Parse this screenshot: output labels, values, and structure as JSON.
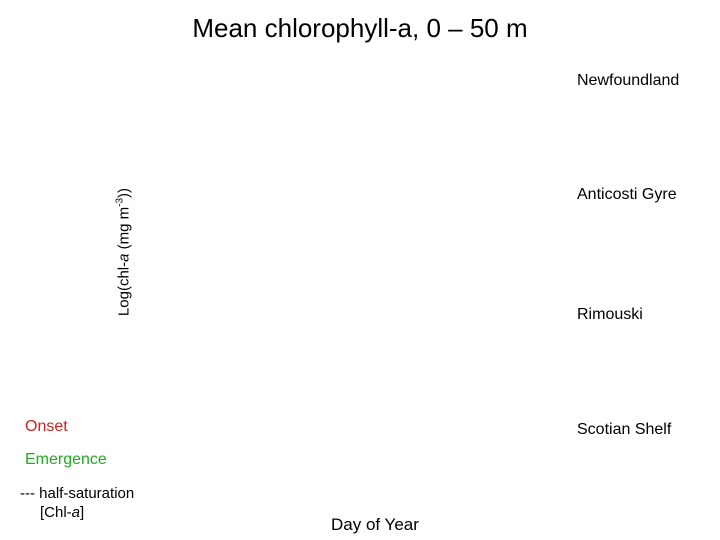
{
  "chart_data": {
    "type": "line",
    "title": "Mean chlorophyll-a, 0 – 50 m",
    "xlabel": "Day of Year",
    "ylabel": {
      "prefix": "Log(chl-",
      "italic": "a",
      "middle": " (mg m",
      "sup": "-3",
      "suffix": "))"
    },
    "panels": [
      "Newfoundland",
      "Anticosti Gyre",
      "Rimouski",
      "Scotian Shelf"
    ],
    "legend": {
      "onset": "Onset",
      "emergence": "Emergence",
      "half_saturation_line1": "--- half-saturation",
      "half_saturation_line2_prefix": "[Chl-",
      "half_saturation_line2_italic": "a",
      "half_saturation_line2_suffix": "]"
    },
    "series": []
  },
  "colors": {
    "onset": "#cc2222",
    "emergence": "#22aa22",
    "text": "#000000"
  }
}
